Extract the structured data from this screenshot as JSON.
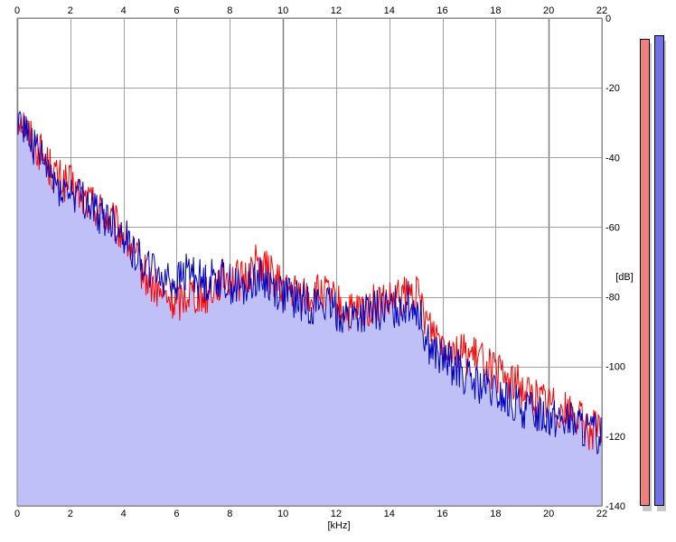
{
  "chart_data": {
    "type": "area",
    "xlabel": "[kHz]",
    "ylabel": "[dB]",
    "xlim": [
      0,
      22
    ],
    "ylim": [
      -140,
      0
    ],
    "x_ticks": [
      0,
      2,
      4,
      6,
      8,
      10,
      12,
      14,
      16,
      18,
      20,
      22
    ],
    "y_ticks": [
      0,
      -20,
      -40,
      -60,
      -80,
      -100,
      -120,
      -140
    ],
    "grid": true,
    "colors": {
      "fill": "#c0c0f8",
      "series_red": "#ff0000",
      "series_blue": "#0000c0",
      "grid": "#a0a0a0",
      "grid_major": "#808080"
    },
    "series": [
      {
        "color": "red",
        "x": [
          0,
          0.5,
          1,
          1.5,
          2,
          2.5,
          3,
          3.5,
          4,
          4.5,
          5,
          5.5,
          6,
          6.5,
          7,
          7.5,
          8,
          8.5,
          9,
          9.5,
          10,
          10.5,
          11,
          11.5,
          12,
          12.5,
          13,
          13.5,
          14,
          14.5,
          15,
          15.5,
          16,
          16.5,
          17,
          17.5,
          18,
          18.5,
          19,
          19.5,
          20,
          20.5,
          21,
          21.5,
          22
        ],
        "y": [
          -26,
          -34,
          -40,
          -46,
          -48,
          -52,
          -54,
          -58,
          -62,
          -70,
          -76,
          -80,
          -82,
          -78,
          -80,
          -76,
          -74,
          -76,
          -70,
          -73,
          -78,
          -79,
          -80,
          -79,
          -82,
          -85,
          -84,
          -82,
          -82,
          -80,
          -79,
          -88,
          -92,
          -95,
          -97,
          -98,
          -102,
          -104,
          -106,
          -109,
          -110,
          -112,
          -114,
          -118,
          -119
        ]
      },
      {
        "color": "blue",
        "x": [
          0,
          0.5,
          1,
          1.5,
          2,
          2.5,
          3,
          3.5,
          4,
          4.5,
          5,
          5.5,
          6,
          6.5,
          7,
          7.5,
          8,
          8.5,
          9,
          9.5,
          10,
          10.5,
          11,
          11.5,
          12,
          12.5,
          13,
          13.5,
          14,
          14.5,
          15,
          15.5,
          16,
          16.5,
          17,
          17.5,
          18,
          18.5,
          19,
          19.5,
          20,
          20.5,
          21,
          21.5,
          22
        ],
        "y": [
          -27,
          -35,
          -42,
          -48,
          -50,
          -52,
          -56,
          -58,
          -62,
          -68,
          -72,
          -74,
          -76,
          -72,
          -76,
          -74,
          -76,
          -78,
          -74,
          -76,
          -79,
          -81,
          -82,
          -82,
          -84,
          -86,
          -85,
          -84,
          -84,
          -82,
          -82,
          -94,
          -98,
          -100,
          -104,
          -106,
          -108,
          -110,
          -112,
          -113,
          -114,
          -115,
          -116,
          -119,
          -120
        ]
      }
    ]
  },
  "meters": {
    "left_color": "#f08080",
    "right_color": "#7070e8",
    "left_level_db": -6,
    "right_level_db": -5
  }
}
